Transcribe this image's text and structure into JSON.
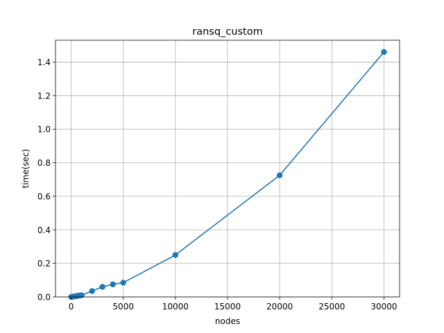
{
  "chart_data": {
    "type": "line",
    "title": "ransq_custom",
    "xlabel": "nodes",
    "ylabel": "time(sec)",
    "xlim": [
      -1500,
      31500
    ],
    "ylim": [
      0,
      1.53
    ],
    "xticks": [
      0,
      5000,
      10000,
      15000,
      20000,
      25000,
      30000
    ],
    "xtick_labels": [
      "0",
      "5000",
      "10000",
      "15000",
      "20000",
      "25000",
      "30000"
    ],
    "yticks": [
      0.0,
      0.2,
      0.4,
      0.6,
      0.8,
      1.0,
      1.2,
      1.4
    ],
    "ytick_labels": [
      "0.0",
      "0.2",
      "0.4",
      "0.6",
      "0.8",
      "1.0",
      "1.2",
      "1.4"
    ],
    "grid": true,
    "markers": true,
    "series": [
      {
        "color": "#1f77b4",
        "x": [
          10,
          50,
          100,
          200,
          300,
          400,
          500,
          600,
          700,
          800,
          900,
          1000,
          2000,
          3000,
          4000,
          5000,
          10000,
          20000,
          30000
        ],
        "y": [
          0.0001,
          0.0005,
          0.001,
          0.002,
          0.003,
          0.004,
          0.005,
          0.006,
          0.007,
          0.008,
          0.009,
          0.01,
          0.035,
          0.06,
          0.075,
          0.085,
          0.25,
          0.725,
          1.46
        ]
      }
    ]
  }
}
